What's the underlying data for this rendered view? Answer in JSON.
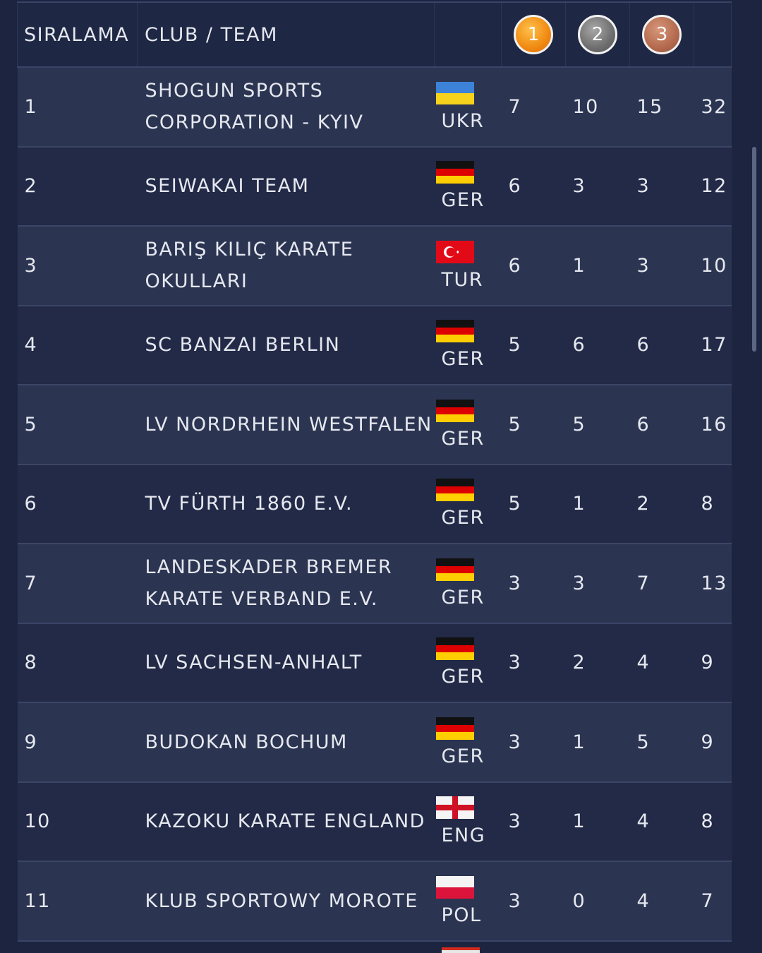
{
  "header": {
    "rank_label": "SIRALAMA",
    "team_label": "CLUB / TEAM",
    "gold_label": "1",
    "silver_label": "2",
    "bronze_label": "3"
  },
  "colors": {
    "background": "#1c2440",
    "row_odd": "#2b3552",
    "row_even": "#222a47",
    "gold": "#f08a12",
    "silver": "#6e6e6e",
    "bronze": "#b36a4e"
  },
  "rows": [
    {
      "rank": "1",
      "team_line1": "SHOGUN SPORTS",
      "team_line2": "CORPORATION - KYIV",
      "flag": "ukr-flag-icon",
      "country": "UKR",
      "gold": "7",
      "silver": "10",
      "bronze": "15",
      "total": "32"
    },
    {
      "rank": "2",
      "team_line1": "SEIWAKAI TEAM",
      "team_line2": "",
      "flag": "ger-flag-icon",
      "country": "GER",
      "gold": "6",
      "silver": "3",
      "bronze": "3",
      "total": "12"
    },
    {
      "rank": "3",
      "team_line1": "BARIŞ KILIÇ KARATE",
      "team_line2": "OKULLARI",
      "flag": "tur-flag-icon",
      "country": "TUR",
      "gold": "6",
      "silver": "1",
      "bronze": "3",
      "total": "10"
    },
    {
      "rank": "4",
      "team_line1": "SC BANZAI BERLIN",
      "team_line2": "",
      "flag": "ger-flag-icon",
      "country": "GER",
      "gold": "5",
      "silver": "6",
      "bronze": "6",
      "total": "17"
    },
    {
      "rank": "5",
      "team_line1": "LV NORDRHEIN WESTFALEN",
      "team_line2": "",
      "flag": "ger-flag-icon",
      "country": "GER",
      "gold": "5",
      "silver": "5",
      "bronze": "6",
      "total": "16"
    },
    {
      "rank": "6",
      "team_line1": "TV FÜRTH 1860 E.V.",
      "team_line2": "",
      "flag": "ger-flag-icon",
      "country": "GER",
      "gold": "5",
      "silver": "1",
      "bronze": "2",
      "total": "8"
    },
    {
      "rank": "7",
      "team_line1": "LANDESKADER BREMER",
      "team_line2": "KARATE VERBAND E.V.",
      "flag": "ger-flag-icon",
      "country": "GER",
      "gold": "3",
      "silver": "3",
      "bronze": "7",
      "total": "13"
    },
    {
      "rank": "8",
      "team_line1": "LV SACHSEN-ANHALT",
      "team_line2": "",
      "flag": "ger-flag-icon",
      "country": "GER",
      "gold": "3",
      "silver": "2",
      "bronze": "4",
      "total": "9"
    },
    {
      "rank": "9",
      "team_line1": "BUDOKAN BOCHUM",
      "team_line2": "",
      "flag": "ger-flag-icon",
      "country": "GER",
      "gold": "3",
      "silver": "1",
      "bronze": "5",
      "total": "9"
    },
    {
      "rank": "10",
      "team_line1": "KAZOKU KARATE ENGLAND",
      "team_line2": "",
      "flag": "eng-flag-icon",
      "country": "ENG",
      "gold": "3",
      "silver": "1",
      "bronze": "4",
      "total": "8"
    },
    {
      "rank": "11",
      "team_line1": "KLUB SPORTOWY MOROTE",
      "team_line2": "",
      "flag": "pol-flag-icon",
      "country": "POL",
      "gold": "3",
      "silver": "0",
      "bronze": "4",
      "total": "7"
    }
  ]
}
